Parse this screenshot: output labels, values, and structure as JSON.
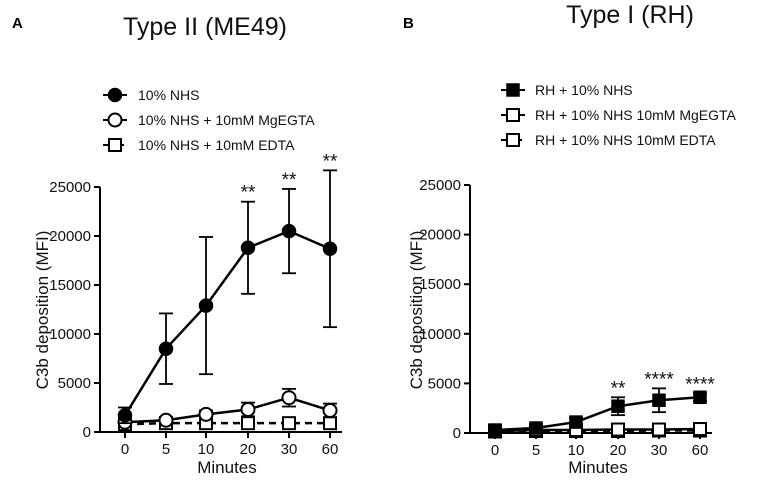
{
  "chart_data": [
    {
      "panel_letter": "A",
      "type": "line",
      "title": "Type II (ME49)",
      "xlabel": "Minutes",
      "ylabel": "C3b deposition (MFI)",
      "categories": [
        "0",
        "5",
        "10",
        "20",
        "30",
        "60"
      ],
      "ylim": [
        0,
        25000
      ],
      "yticks": [
        0,
        5000,
        10000,
        15000,
        20000,
        25000
      ],
      "series": [
        {
          "name": "10% NHS",
          "marker": "circle-filled",
          "line": "solid",
          "color": "#000000",
          "values": [
            1700,
            8500,
            12900,
            18800,
            20500,
            18700
          ],
          "errors": [
            800,
            3600,
            7000,
            4700,
            4300,
            8000
          ]
        },
        {
          "name": "10% NHS + 10mM MgEGTA",
          "marker": "circle-open",
          "line": "solid",
          "color": "#000000",
          "values": [
            1000,
            1200,
            1800,
            2300,
            3500,
            2200
          ],
          "errors": [
            300,
            300,
            400,
            700,
            900,
            700
          ]
        },
        {
          "name": "10% NHS + 10mM EDTA",
          "marker": "square-open",
          "line": "dashed",
          "color": "#000000",
          "values": [
            800,
            900,
            900,
            900,
            900,
            900
          ],
          "errors": [
            200,
            200,
            200,
            200,
            200,
            200
          ]
        }
      ],
      "significance": [
        {
          "category": "20",
          "label": "**"
        },
        {
          "category": "30",
          "label": "**"
        },
        {
          "category": "60",
          "label": "**"
        }
      ]
    },
    {
      "panel_letter": "B",
      "type": "line",
      "title": "Type I (RH)",
      "xlabel": "Minutes",
      "ylabel": "C3b deposition (MFI)",
      "categories": [
        "0",
        "5",
        "10",
        "20",
        "30",
        "60"
      ],
      "ylim": [
        0,
        25000
      ],
      "yticks": [
        0,
        5000,
        10000,
        15000,
        20000,
        25000
      ],
      "series": [
        {
          "name": "RH + 10% NHS",
          "marker": "square-filled",
          "line": "solid",
          "color": "#000000",
          "values": [
            300,
            500,
            1100,
            2700,
            3300,
            3600
          ],
          "errors": [
            100,
            100,
            400,
            900,
            1200,
            400
          ]
        },
        {
          "name": "RH + 10% NHS 10mM MgEGTA",
          "marker": "square-open",
          "line": "solid",
          "color": "#000000",
          "values": [
            200,
            300,
            300,
            350,
            350,
            400
          ],
          "errors": [
            50,
            50,
            80,
            80,
            80,
            80
          ]
        },
        {
          "name": "RH + 10% NHS 10mM EDTA",
          "marker": "square-open",
          "line": "dashed",
          "color": "#000000",
          "values": [
            150,
            200,
            200,
            200,
            250,
            250
          ],
          "errors": [
            50,
            50,
            50,
            50,
            50,
            50
          ]
        }
      ],
      "significance": [
        {
          "category": "20",
          "label": "**"
        },
        {
          "category": "30",
          "label": "****"
        },
        {
          "category": "60",
          "label": "****"
        }
      ]
    }
  ]
}
